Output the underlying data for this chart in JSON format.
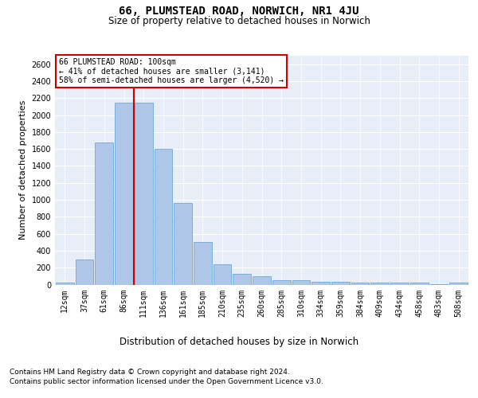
{
  "title1": "66, PLUMSTEAD ROAD, NORWICH, NR1 4JU",
  "title2": "Size of property relative to detached houses in Norwich",
  "xlabel": "Distribution of detached houses by size in Norwich",
  "ylabel": "Number of detached properties",
  "footnote1": "Contains HM Land Registry data © Crown copyright and database right 2024.",
  "footnote2": "Contains public sector information licensed under the Open Government Licence v3.0.",
  "annotation_line1": "66 PLUMSTEAD ROAD: 100sqm",
  "annotation_line2": "← 41% of detached houses are smaller (3,141)",
  "annotation_line3": "58% of semi-detached houses are larger (4,520) →",
  "bin_labels": [
    "12sqm",
    "37sqm",
    "61sqm",
    "86sqm",
    "111sqm",
    "136sqm",
    "161sqm",
    "185sqm",
    "210sqm",
    "235sqm",
    "260sqm",
    "285sqm",
    "310sqm",
    "334sqm",
    "359sqm",
    "384sqm",
    "409sqm",
    "434sqm",
    "458sqm",
    "483sqm",
    "508sqm"
  ],
  "bar_values": [
    25,
    300,
    1675,
    2150,
    2150,
    1600,
    960,
    500,
    240,
    125,
    100,
    50,
    50,
    30,
    30,
    20,
    20,
    20,
    20,
    5,
    25
  ],
  "bar_color": "#aec6e8",
  "bar_edge_color": "#5a9fd4",
  "marker_line_color": "#cc0000",
  "marker_bin_index": 4,
  "ylim": [
    0,
    2700
  ],
  "yticks": [
    0,
    200,
    400,
    600,
    800,
    1000,
    1200,
    1400,
    1600,
    1800,
    2000,
    2200,
    2400,
    2600
  ],
  "background_color": "#e8eef7",
  "grid_color": "#ffffff",
  "annotation_box_color": "#ffffff",
  "annotation_box_edge_color": "#cc0000",
  "title1_fontsize": 10,
  "title2_fontsize": 8.5,
  "xlabel_fontsize": 8.5,
  "ylabel_fontsize": 8,
  "tick_fontsize": 7,
  "annotation_fontsize": 7,
  "footnote_fontsize": 6.5
}
